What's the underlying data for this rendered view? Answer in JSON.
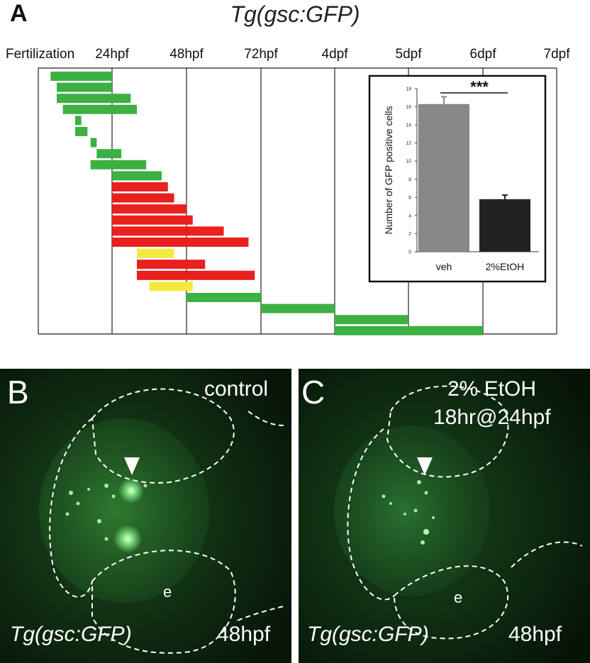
{
  "panel_a": {
    "letter": "A",
    "title": "Tg(gsc:GFP)",
    "timepoints": [
      "Fertilization",
      "24hpf",
      "48hpf",
      "72hpf",
      "4dpf",
      "5dpf",
      "6dpf",
      "7dpf"
    ],
    "timepoint_hours": [
      0,
      24,
      48,
      72,
      96,
      120,
      144,
      168
    ],
    "exposure_windows_hours": [
      {
        "start": 4,
        "end": 24,
        "status": "green"
      },
      {
        "start": 6,
        "end": 24,
        "status": "green"
      },
      {
        "start": 6,
        "end": 30,
        "status": "green"
      },
      {
        "start": 8,
        "end": 32,
        "status": "green"
      },
      {
        "start": 12,
        "end": 14,
        "status": "green"
      },
      {
        "start": 12,
        "end": 16,
        "status": "green"
      },
      {
        "start": 17,
        "end": 19,
        "status": "green"
      },
      {
        "start": 19,
        "end": 27,
        "status": "green"
      },
      {
        "start": 17,
        "end": 35,
        "status": "green"
      },
      {
        "start": 24,
        "end": 40,
        "status": "green"
      },
      {
        "start": 24,
        "end": 42,
        "status": "red"
      },
      {
        "start": 24,
        "end": 44,
        "status": "red"
      },
      {
        "start": 24,
        "end": 48,
        "status": "red"
      },
      {
        "start": 24,
        "end": 50,
        "status": "red"
      },
      {
        "start": 24,
        "end": 60,
        "status": "red"
      },
      {
        "start": 24,
        "end": 68,
        "status": "red"
      },
      {
        "start": 32,
        "end": 44,
        "status": "yellow"
      },
      {
        "start": 32,
        "end": 54,
        "status": "red"
      },
      {
        "start": 32,
        "end": 70,
        "status": "red"
      },
      {
        "start": 36,
        "end": 50,
        "status": "yellow"
      },
      {
        "start": 48,
        "end": 72,
        "status": "green"
      },
      {
        "start": 72,
        "end": 96,
        "status": "green"
      },
      {
        "start": 96,
        "end": 120,
        "status": "green"
      },
      {
        "start": 96,
        "end": 144,
        "status": "green"
      }
    ],
    "colors": {
      "green": "#3cb043",
      "red": "#e8201e",
      "yellow": "#f2ea3c",
      "grid": "#222222"
    }
  },
  "chart_data": {
    "type": "bar",
    "categories": [
      "veh",
      "2%EtOH"
    ],
    "values": [
      16.3,
      5.8
    ],
    "errors": [
      0.8,
      0.45
    ],
    "ylabel": "Number of GFP positive cells",
    "ylim": [
      0,
      18
    ],
    "yticks": [
      0,
      2,
      4,
      6,
      8,
      10,
      12,
      14,
      16,
      18
    ],
    "significance": "***",
    "bar_colors": [
      "#888888",
      "#222222"
    ]
  },
  "panel_b": {
    "letter": "B",
    "condition": "control",
    "transgene": "Tg(gsc:GFP)",
    "stage": "48hpf",
    "eye_label": "e"
  },
  "panel_c": {
    "letter": "C",
    "condition_line1": "2% EtOH",
    "condition_line2": "18hr@24hpf",
    "transgene": "Tg(gsc:GFP)",
    "stage": "48hpf",
    "eye_label": "e"
  }
}
